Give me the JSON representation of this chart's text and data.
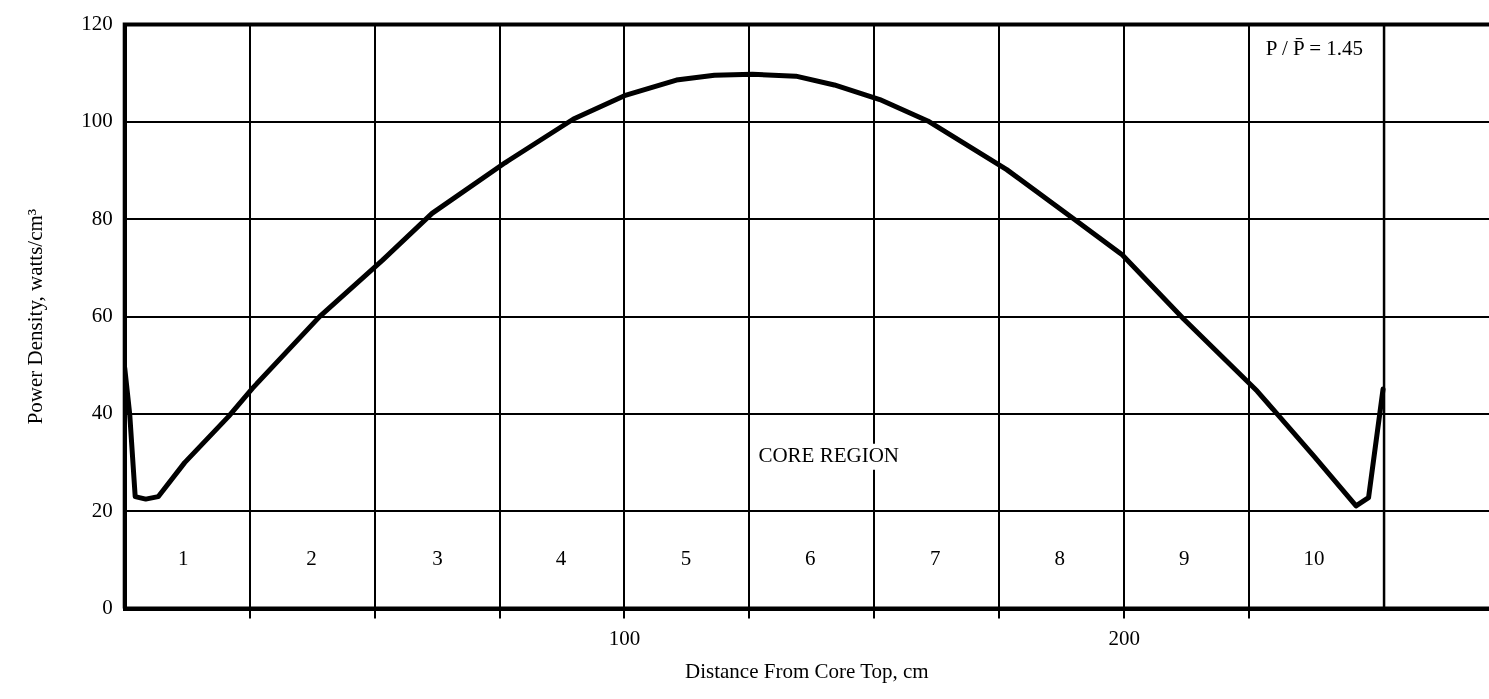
{
  "chart_data": {
    "type": "line",
    "xlabel": "Distance From Core Top, cm",
    "ylabel": "Power Density, watts/cm³",
    "x": [
      0,
      1,
      2.1,
      4.2,
      6.7,
      12,
      20.8,
      25.6,
      39,
      51.6,
      61.5,
      76.1,
      89.8,
      100,
      110.4,
      118,
      125.6,
      134.3,
      142,
      151.1,
      160.7,
      176.5,
      190,
      199.6,
      211.9,
      226.6,
      238,
      246.4,
      248.9,
      251.8
    ],
    "series": [
      {
        "color": "#000000",
        "values": [
          49.5,
          40,
          23,
          22.5,
          23,
          30,
          39.5,
          45.3,
          60,
          71.6,
          81.2,
          91.6,
          100.6,
          105.4,
          108.6,
          109.6,
          109.8,
          109.4,
          107.6,
          104.6,
          100.2,
          90.2,
          80,
          72.7,
          59.5,
          44.7,
          31.3,
          21.1,
          22.8,
          45.1
        ]
      }
    ],
    "xlim": [
      0,
      273
    ],
    "ylim": [
      0,
      120
    ],
    "xticks": [
      {
        "value": 25,
        "label": null
      },
      {
        "value": 50,
        "label": null
      },
      {
        "value": 75,
        "label": null
      },
      100,
      {
        "value": 125,
        "label": null
      },
      {
        "value": 150,
        "label": null
      },
      {
        "value": 175,
        "label": null
      },
      200,
      {
        "value": 225,
        "label": null
      }
    ],
    "yticks": [
      0,
      20,
      40,
      60,
      80,
      100,
      120
    ],
    "ref_lines": [
      {
        "axis": "x",
        "value": 252,
        "color": "#000000"
      }
    ],
    "grid": true,
    "legend": false,
    "marker": "none",
    "line_style": "solid",
    "annotations": [
      {
        "text": "1",
        "x": 11.7,
        "y": 10
      },
      {
        "text": "2",
        "x": 37.4,
        "y": 10
      },
      {
        "text": "3",
        "x": 62.6,
        "y": 10
      },
      {
        "text": "4",
        "x": 87.3,
        "y": 10
      },
      {
        "text": "5",
        "x": 112.3,
        "y": 10
      },
      {
        "text": "6",
        "x": 137.2,
        "y": 10
      },
      {
        "text": "7",
        "x": 162.2,
        "y": 10
      },
      {
        "text": "8",
        "x": 187.1,
        "y": 10
      },
      {
        "text": "9",
        "x": 212,
        "y": 10
      },
      {
        "text": "10",
        "x": 238,
        "y": 10
      },
      "CORE REGION",
      "P / P̄ = 1.45"
    ]
  }
}
